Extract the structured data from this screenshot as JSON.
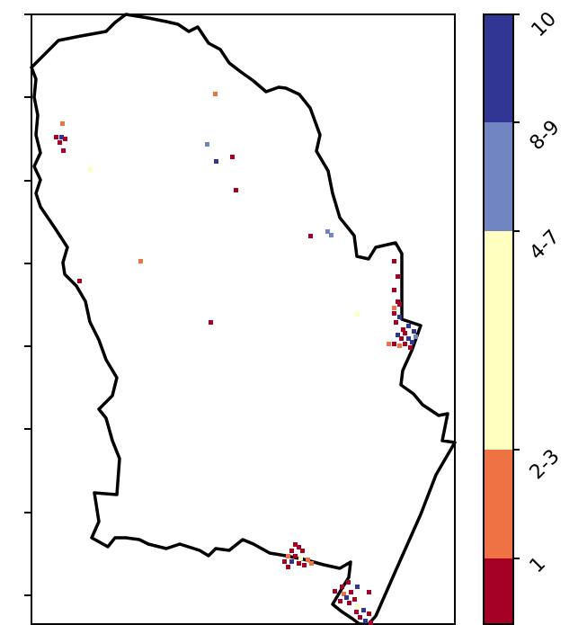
{
  "legend": {
    "classes": [
      {
        "label": "1",
        "color": "#a50026"
      },
      {
        "label": "2-3",
        "color": "#ef7245"
      },
      {
        "label": "4-7",
        "color": "#ffffbf"
      },
      {
        "label": "8-9",
        "color": "#7085c1"
      },
      {
        "label": "10",
        "color": "#313695"
      }
    ]
  }
}
